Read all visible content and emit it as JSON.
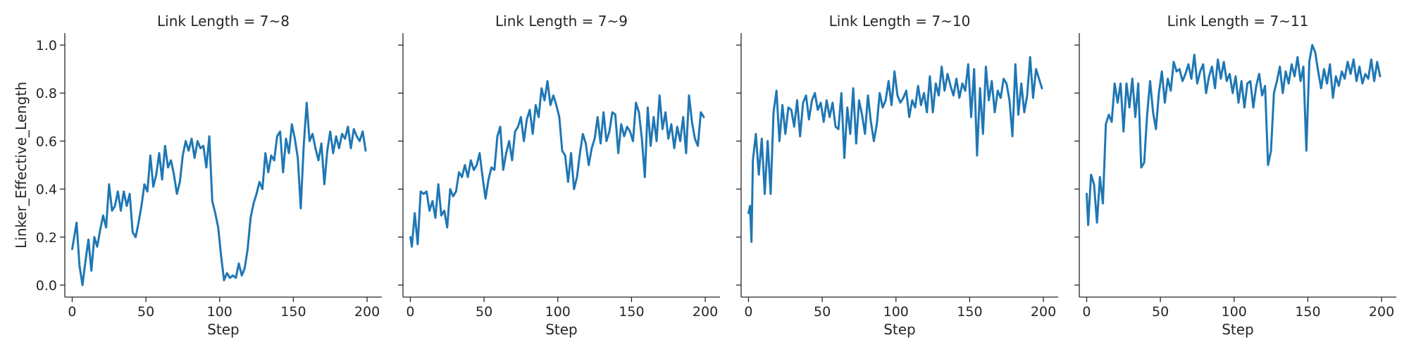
{
  "chart_data": [
    {
      "type": "line",
      "title": "Link Length = 7~8",
      "xlabel": "Step",
      "ylabel": "Linker_Effective_Length",
      "xlim": [
        -5,
        210
      ],
      "ylim": [
        -0.05,
        1.05
      ],
      "xticks": [
        0,
        50,
        100,
        150,
        200
      ],
      "yticks": [
        0.0,
        0.2,
        0.4,
        0.6,
        0.8,
        1.0
      ],
      "x": [
        0,
        3,
        5,
        7,
        9,
        11,
        13,
        15,
        17,
        19,
        21,
        23,
        25,
        27,
        29,
        31,
        33,
        35,
        37,
        39,
        41,
        43,
        45,
        47,
        49,
        51,
        53,
        55,
        57,
        59,
        61,
        63,
        65,
        67,
        69,
        71,
        73,
        75,
        77,
        79,
        81,
        83,
        85,
        87,
        89,
        91,
        93,
        95,
        97,
        99,
        101,
        103,
        105,
        107,
        109,
        111,
        113,
        115,
        117,
        119,
        121,
        123,
        125,
        127,
        129,
        131,
        133,
        135,
        137,
        139,
        141,
        143,
        145,
        147,
        149,
        151,
        153,
        155,
        157,
        159,
        161,
        163,
        165,
        167,
        169,
        171,
        173,
        175,
        177,
        179,
        181,
        183,
        185,
        187,
        189,
        191,
        193,
        195,
        197,
        199
      ],
      "y": [
        0.15,
        0.26,
        0.08,
        0.0,
        0.1,
        0.19,
        0.06,
        0.2,
        0.16,
        0.23,
        0.29,
        0.24,
        0.42,
        0.31,
        0.33,
        0.39,
        0.31,
        0.39,
        0.33,
        0.38,
        0.22,
        0.2,
        0.26,
        0.33,
        0.42,
        0.39,
        0.54,
        0.41,
        0.46,
        0.55,
        0.44,
        0.58,
        0.49,
        0.52,
        0.46,
        0.38,
        0.43,
        0.54,
        0.6,
        0.56,
        0.61,
        0.53,
        0.6,
        0.57,
        0.58,
        0.49,
        0.62,
        0.35,
        0.3,
        0.24,
        0.12,
        0.02,
        0.05,
        0.03,
        0.04,
        0.03,
        0.09,
        0.04,
        0.07,
        0.15,
        0.28,
        0.34,
        0.38,
        0.43,
        0.4,
        0.55,
        0.47,
        0.54,
        0.52,
        0.62,
        0.64,
        0.47,
        0.61,
        0.55,
        0.67,
        0.61,
        0.53,
        0.32,
        0.58,
        0.76,
        0.6,
        0.63,
        0.57,
        0.52,
        0.59,
        0.42,
        0.56,
        0.64,
        0.55,
        0.62,
        0.57,
        0.63,
        0.61,
        0.66,
        0.57,
        0.65,
        0.62,
        0.6,
        0.64,
        0.56
      ],
      "color": "#1f77b4"
    },
    {
      "type": "line",
      "title": "Link Length = 7~9",
      "xlabel": "Step",
      "ylabel": "",
      "xlim": [
        -5,
        210
      ],
      "ylim": [
        -0.05,
        1.05
      ],
      "xticks": [
        0,
        50,
        100,
        150,
        200
      ],
      "x": [
        0,
        1,
        3,
        5,
        7,
        9,
        11,
        13,
        15,
        17,
        19,
        21,
        23,
        25,
        27,
        29,
        31,
        33,
        35,
        37,
        39,
        41,
        43,
        45,
        47,
        49,
        51,
        53,
        55,
        57,
        59,
        61,
        63,
        65,
        67,
        69,
        71,
        73,
        75,
        77,
        79,
        81,
        83,
        85,
        87,
        89,
        91,
        93,
        95,
        97,
        99,
        101,
        103,
        105,
        107,
        109,
        111,
        113,
        115,
        117,
        119,
        121,
        123,
        125,
        127,
        129,
        131,
        133,
        135,
        137,
        139,
        141,
        143,
        145,
        147,
        149,
        151,
        153,
        155,
        157,
        159,
        161,
        163,
        165,
        167,
        169,
        171,
        173,
        175,
        177,
        179,
        181,
        183,
        185,
        187,
        189,
        191,
        193,
        195,
        197,
        199
      ],
      "y": [
        0.2,
        0.16,
        0.3,
        0.17,
        0.39,
        0.38,
        0.39,
        0.31,
        0.35,
        0.28,
        0.42,
        0.29,
        0.31,
        0.24,
        0.4,
        0.37,
        0.39,
        0.47,
        0.45,
        0.5,
        0.45,
        0.52,
        0.48,
        0.5,
        0.55,
        0.45,
        0.36,
        0.44,
        0.49,
        0.48,
        0.62,
        0.66,
        0.48,
        0.55,
        0.6,
        0.52,
        0.64,
        0.66,
        0.7,
        0.6,
        0.69,
        0.73,
        0.63,
        0.75,
        0.7,
        0.82,
        0.77,
        0.85,
        0.75,
        0.79,
        0.75,
        0.7,
        0.56,
        0.54,
        0.43,
        0.55,
        0.4,
        0.45,
        0.55,
        0.63,
        0.59,
        0.5,
        0.57,
        0.61,
        0.7,
        0.59,
        0.72,
        0.6,
        0.64,
        0.72,
        0.71,
        0.55,
        0.67,
        0.62,
        0.66,
        0.64,
        0.6,
        0.76,
        0.72,
        0.61,
        0.45,
        0.74,
        0.58,
        0.7,
        0.6,
        0.79,
        0.65,
        0.72,
        0.61,
        0.67,
        0.57,
        0.66,
        0.6,
        0.7,
        0.55,
        0.79,
        0.68,
        0.61,
        0.58,
        0.72,
        0.7
      ],
      "color": "#1f77b4"
    },
    {
      "type": "line",
      "title": "Link Length = 7~10",
      "xlabel": "Step",
      "ylabel": "",
      "xlim": [
        -5,
        210
      ],
      "ylim": [
        -0.05,
        1.05
      ],
      "xticks": [
        0,
        50,
        100,
        150,
        200
      ],
      "x": [
        0,
        1,
        2,
        3,
        5,
        7,
        9,
        11,
        13,
        15,
        17,
        19,
        21,
        23,
        25,
        27,
        29,
        31,
        33,
        35,
        37,
        39,
        41,
        43,
        45,
        47,
        49,
        51,
        53,
        55,
        57,
        59,
        61,
        63,
        65,
        67,
        69,
        71,
        73,
        75,
        77,
        79,
        81,
        83,
        85,
        87,
        89,
        91,
        93,
        95,
        97,
        99,
        101,
        103,
        105,
        107,
        109,
        111,
        113,
        115,
        117,
        119,
        121,
        123,
        125,
        127,
        129,
        131,
        133,
        135,
        137,
        139,
        141,
        143,
        145,
        147,
        149,
        151,
        153,
        155,
        157,
        159,
        161,
        163,
        165,
        167,
        169,
        171,
        173,
        175,
        177,
        179,
        181,
        183,
        185,
        187,
        189,
        191,
        193,
        195,
        197,
        199
      ],
      "y": [
        0.3,
        0.33,
        0.18,
        0.52,
        0.63,
        0.46,
        0.61,
        0.38,
        0.6,
        0.38,
        0.72,
        0.81,
        0.6,
        0.75,
        0.63,
        0.74,
        0.73,
        0.66,
        0.77,
        0.62,
        0.76,
        0.79,
        0.69,
        0.77,
        0.8,
        0.73,
        0.76,
        0.68,
        0.77,
        0.7,
        0.76,
        0.66,
        0.65,
        0.8,
        0.53,
        0.74,
        0.63,
        0.82,
        0.59,
        0.77,
        0.71,
        0.63,
        0.79,
        0.68,
        0.6,
        0.67,
        0.8,
        0.74,
        0.77,
        0.85,
        0.75,
        0.89,
        0.79,
        0.76,
        0.78,
        0.81,
        0.7,
        0.77,
        0.74,
        0.83,
        0.75,
        0.8,
        0.72,
        0.87,
        0.72,
        0.84,
        0.79,
        0.91,
        0.81,
        0.88,
        0.83,
        0.79,
        0.86,
        0.78,
        0.84,
        0.81,
        0.92,
        0.7,
        0.9,
        0.54,
        0.82,
        0.63,
        0.91,
        0.77,
        0.85,
        0.72,
        0.81,
        0.78,
        0.86,
        0.84,
        0.77,
        0.62,
        0.92,
        0.71,
        0.84,
        0.72,
        0.79,
        0.95,
        0.78,
        0.9,
        0.86,
        0.82
      ],
      "color": "#1f77b4"
    },
    {
      "type": "line",
      "title": "Link Length = 7~11",
      "xlabel": "Step",
      "ylabel": "",
      "xlim": [
        -5,
        210
      ],
      "ylim": [
        -0.05,
        1.05
      ],
      "xticks": [
        0,
        50,
        100,
        150,
        200
      ],
      "x": [
        0,
        1,
        3,
        5,
        7,
        9,
        11,
        13,
        15,
        17,
        19,
        21,
        23,
        25,
        27,
        29,
        31,
        33,
        35,
        37,
        39,
        41,
        43,
        45,
        47,
        49,
        51,
        53,
        55,
        57,
        59,
        61,
        63,
        65,
        67,
        69,
        71,
        73,
        75,
        77,
        79,
        81,
        83,
        85,
        87,
        89,
        91,
        93,
        95,
        97,
        99,
        101,
        103,
        105,
        107,
        109,
        111,
        113,
        115,
        117,
        119,
        121,
        123,
        125,
        127,
        129,
        131,
        133,
        135,
        137,
        139,
        141,
        143,
        145,
        147,
        149,
        151,
        153,
        155,
        157,
        159,
        161,
        163,
        165,
        167,
        169,
        171,
        173,
        175,
        177,
        179,
        181,
        183,
        185,
        187,
        189,
        191,
        193,
        195,
        197,
        199
      ],
      "y": [
        0.38,
        0.25,
        0.46,
        0.42,
        0.26,
        0.45,
        0.34,
        0.67,
        0.71,
        0.68,
        0.84,
        0.76,
        0.84,
        0.64,
        0.84,
        0.74,
        0.86,
        0.7,
        0.84,
        0.49,
        0.51,
        0.71,
        0.85,
        0.72,
        0.65,
        0.8,
        0.89,
        0.76,
        0.86,
        0.81,
        0.93,
        0.89,
        0.9,
        0.85,
        0.88,
        0.92,
        0.86,
        0.96,
        0.84,
        0.89,
        0.92,
        0.8,
        0.87,
        0.91,
        0.82,
        0.94,
        0.86,
        0.93,
        0.85,
        0.88,
        0.8,
        0.87,
        0.76,
        0.85,
        0.74,
        0.84,
        0.85,
        0.74,
        0.83,
        0.88,
        0.79,
        0.83,
        0.5,
        0.56,
        0.8,
        0.85,
        0.91,
        0.8,
        0.89,
        0.84,
        0.92,
        0.87,
        0.95,
        0.85,
        0.91,
        0.56,
        0.93,
        1.0,
        0.97,
        0.89,
        0.82,
        0.9,
        0.84,
        0.92,
        0.78,
        0.87,
        0.83,
        0.89,
        0.86,
        0.93,
        0.88,
        0.94,
        0.85,
        0.91,
        0.84,
        0.88,
        0.86,
        0.94,
        0.85,
        0.93,
        0.87
      ],
      "color": "#1f77b4"
    }
  ]
}
